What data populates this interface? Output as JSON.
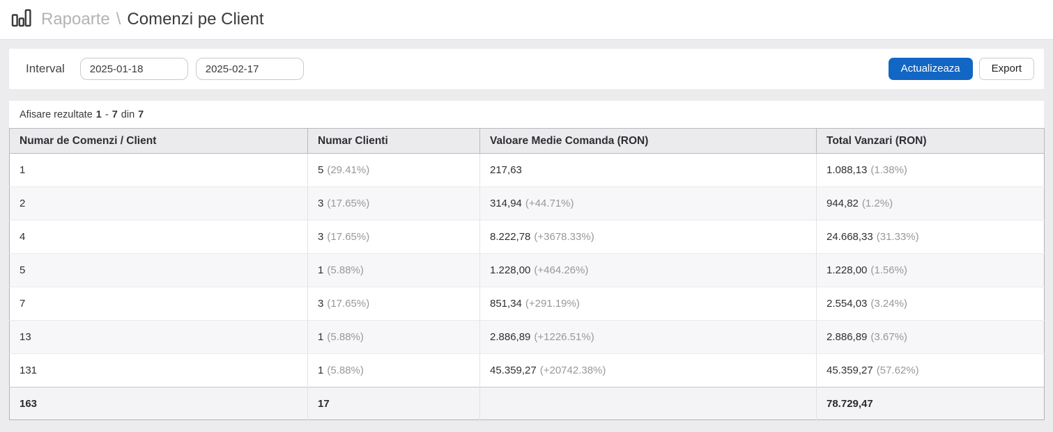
{
  "colors": {
    "accent_blue": "#1266c4",
    "page_background": "#ececee",
    "muted_text": "#98989d"
  },
  "header": {
    "icon": "bar-chart-icon",
    "breadcrumb_root": "Rapoarte",
    "separator": "\\",
    "page_title": "Comenzi pe Client"
  },
  "filter": {
    "label": "Interval",
    "date_from": "2025-01-18",
    "date_to": "2025-02-17",
    "update_label": "Actualizeaza",
    "export_label": "Export"
  },
  "results_info": {
    "prefix": "Afisare rezultate",
    "from": "1",
    "dash": "-",
    "to": "7",
    "of_word": "din",
    "total": "7"
  },
  "table": {
    "columns": [
      "Numar de Comenzi / Client",
      "Numar Clienti",
      "Valoare Medie Comanda (RON)",
      "Total Vanzari (RON)"
    ],
    "rows": [
      {
        "orders_per_client": "1",
        "clients": "5",
        "clients_pct": "(29.41%)",
        "avg_order": "217,63",
        "avg_order_pct": "",
        "total_sales": "1.088,13",
        "total_sales_pct": "(1.38%)"
      },
      {
        "orders_per_client": "2",
        "clients": "3",
        "clients_pct": "(17.65%)",
        "avg_order": "314,94",
        "avg_order_pct": "(+44.71%)",
        "total_sales": "944,82",
        "total_sales_pct": "(1.2%)"
      },
      {
        "orders_per_client": "4",
        "clients": "3",
        "clients_pct": "(17.65%)",
        "avg_order": "8.222,78",
        "avg_order_pct": "(+3678.33%)",
        "total_sales": "24.668,33",
        "total_sales_pct": "(31.33%)"
      },
      {
        "orders_per_client": "5",
        "clients": "1",
        "clients_pct": "(5.88%)",
        "avg_order": "1.228,00",
        "avg_order_pct": "(+464.26%)",
        "total_sales": "1.228,00",
        "total_sales_pct": "(1.56%)"
      },
      {
        "orders_per_client": "7",
        "clients": "3",
        "clients_pct": "(17.65%)",
        "avg_order": "851,34",
        "avg_order_pct": "(+291.19%)",
        "total_sales": "2.554,03",
        "total_sales_pct": "(3.24%)"
      },
      {
        "orders_per_client": "13",
        "clients": "1",
        "clients_pct": "(5.88%)",
        "avg_order": "2.886,89",
        "avg_order_pct": "(+1226.51%)",
        "total_sales": "2.886,89",
        "total_sales_pct": "(3.67%)"
      },
      {
        "orders_per_client": "131",
        "clients": "1",
        "clients_pct": "(5.88%)",
        "avg_order": "45.359,27",
        "avg_order_pct": "(+20742.38%)",
        "total_sales": "45.359,27",
        "total_sales_pct": "(57.62%)"
      }
    ],
    "footer": {
      "orders_total": "163",
      "clients_total": "17",
      "avg_order_total": "",
      "sales_total": "78.729,47"
    }
  }
}
